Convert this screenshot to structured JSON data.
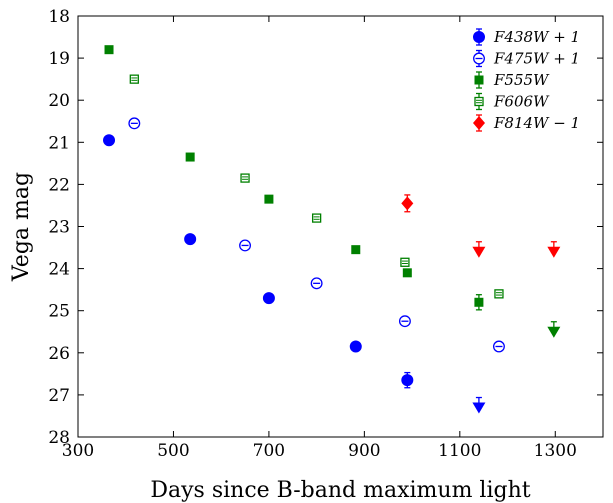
{
  "chart_data": {
    "type": "scatter",
    "xlabel": "Days since B-band maximum light",
    "ylabel": "Vega mag",
    "xlim": [
      300,
      1400
    ],
    "ylim": [
      28,
      18
    ],
    "y_inverted": true,
    "xticks": [
      "300",
      "500",
      "700",
      "900",
      "1100",
      "1300"
    ],
    "yticks": [
      "18",
      "19",
      "20",
      "21",
      "22",
      "23",
      "24",
      "25",
      "26",
      "27",
      "28"
    ],
    "grid": false,
    "legend_position": "top-right",
    "series": [
      {
        "name": "F438W + 1",
        "color": "#0000ff",
        "marker": "filled-circle",
        "points": [
          {
            "x": 365,
            "y": 20.95
          },
          {
            "x": 535,
            "y": 23.3
          },
          {
            "x": 700,
            "y": 24.7
          },
          {
            "x": 882,
            "y": 25.85
          },
          {
            "x": 990,
            "y": 26.65,
            "err": 0.18
          }
        ],
        "upper_limits": [
          {
            "x": 1140,
            "y": 27.3
          }
        ]
      },
      {
        "name": "F475W + 1",
        "color": "#0000ff",
        "marker": "open-circle",
        "points": [
          {
            "x": 418,
            "y": 20.55
          },
          {
            "x": 650,
            "y": 23.45
          },
          {
            "x": 800,
            "y": 24.35
          },
          {
            "x": 985,
            "y": 25.25
          },
          {
            "x": 1182,
            "y": 25.85
          }
        ],
        "upper_limits": []
      },
      {
        "name": "F555W",
        "color": "#008000",
        "marker": "filled-square",
        "points": [
          {
            "x": 365,
            "y": 18.8
          },
          {
            "x": 535,
            "y": 21.35
          },
          {
            "x": 700,
            "y": 22.35
          },
          {
            "x": 882,
            "y": 23.55
          },
          {
            "x": 990,
            "y": 24.1
          },
          {
            "x": 1140,
            "y": 24.8,
            "err": 0.18
          }
        ],
        "upper_limits": [
          {
            "x": 1297,
            "y": 25.5
          }
        ]
      },
      {
        "name": "F606W",
        "color": "#008000",
        "marker": "open-square",
        "points": [
          {
            "x": 418,
            "y": 19.5
          },
          {
            "x": 650,
            "y": 21.85
          },
          {
            "x": 800,
            "y": 22.8
          },
          {
            "x": 985,
            "y": 23.85
          },
          {
            "x": 1182,
            "y": 24.6
          }
        ],
        "upper_limits": []
      },
      {
        "name": "F814W − 1",
        "color": "#ff0000",
        "marker": "filled-diamond",
        "points": [
          {
            "x": 990,
            "y": 22.45,
            "err": 0.2
          }
        ],
        "upper_limits": [
          {
            "x": 1140,
            "y": 23.6
          },
          {
            "x": 1297,
            "y": 23.6
          }
        ]
      }
    ]
  }
}
